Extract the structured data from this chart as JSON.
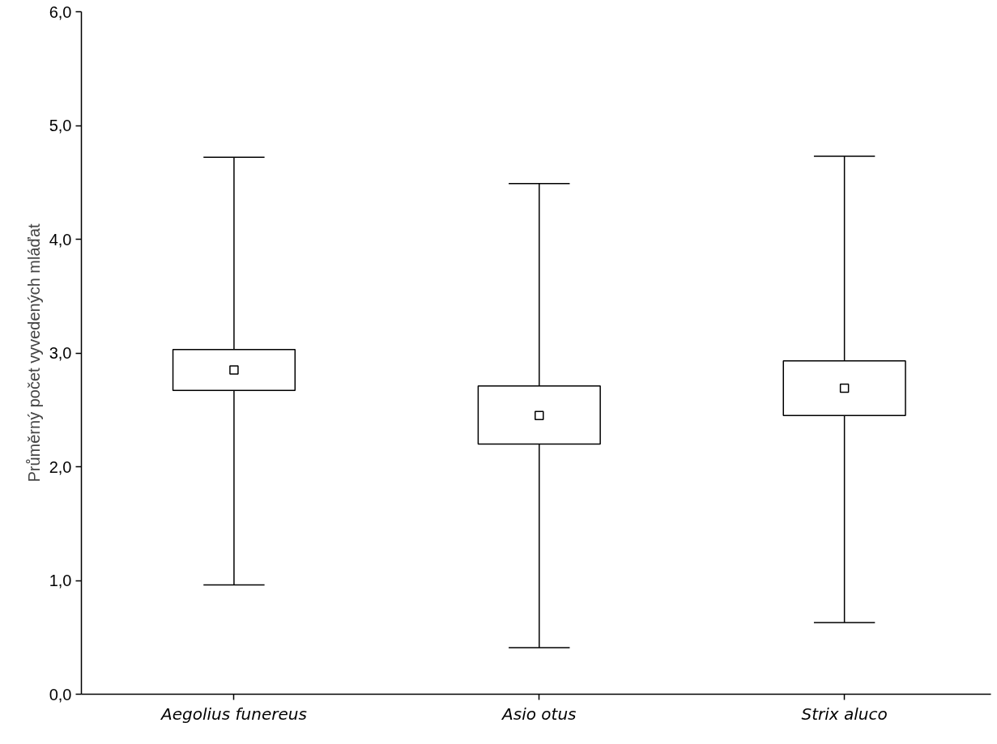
{
  "chart_data": {
    "type": "box",
    "ylabel": "Průměrný počet vyvedených mláďat",
    "categories": [
      "Aegolius funereus",
      "Asio otus",
      "Strix aluco"
    ],
    "boxes": [
      {
        "low": 0.96,
        "q1": 2.67,
        "median": 2.85,
        "q3": 3.03,
        "high": 4.72
      },
      {
        "low": 0.41,
        "q1": 2.2,
        "median": 2.45,
        "q3": 2.71,
        "high": 4.49
      },
      {
        "low": 0.63,
        "q1": 2.45,
        "median": 2.69,
        "q3": 2.93,
        "high": 4.73
      }
    ],
    "color": "#000000",
    "ylim": [
      0,
      6
    ],
    "yticks": [
      {
        "value": 0,
        "label": "0,0"
      },
      {
        "value": 1,
        "label": "1,0"
      },
      {
        "value": 2,
        "label": "2,0"
      },
      {
        "value": 3,
        "label": "3,0"
      },
      {
        "value": 4,
        "label": "4,0"
      },
      {
        "value": 5,
        "label": "5,0"
      },
      {
        "value": 6,
        "label": "6,0"
      }
    ],
    "grid": false,
    "marker": "square"
  }
}
